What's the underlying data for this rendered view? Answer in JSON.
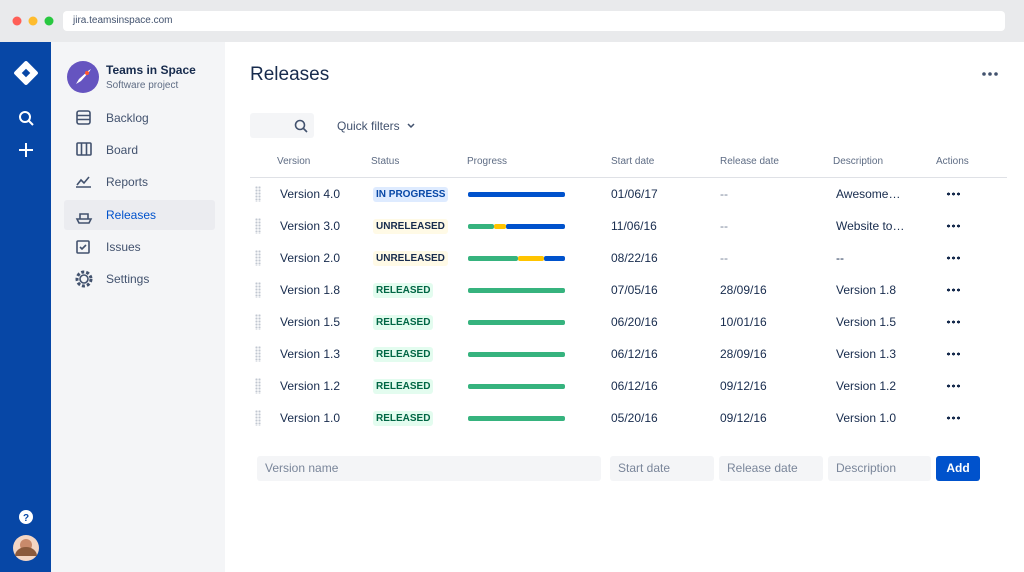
{
  "browser": {
    "url": "jira.teamsinspace.com"
  },
  "project": {
    "name": "Teams in Space",
    "type": "Software project"
  },
  "nav": [
    "Backlog",
    "Board",
    "Reports",
    "Releases",
    "Issues",
    "Settings"
  ],
  "page": {
    "title": "Releases",
    "quick_filters": "Quick filters"
  },
  "table": {
    "columns": [
      "Version",
      "Status",
      "Progress",
      "Start date",
      "Release date",
      "Description",
      "Actions"
    ],
    "progress_colors": [
      "#36b37e",
      "#ffc400",
      "#0052cc"
    ],
    "rows": [
      {
        "version": "Version 4.0",
        "status": {
          "label": "IN PROGRESS",
          "bg": "#deebff",
          "color": "#0747a6"
        },
        "progress": [
          0,
          0,
          100
        ],
        "start": "01/06/17",
        "release": "--",
        "description": "Awesome…"
      },
      {
        "version": "Version 3.0",
        "status": {
          "label": "UNRELEASED",
          "bg": "#fffae6",
          "color": "#172b4d"
        },
        "progress": [
          27,
          12,
          61
        ],
        "start": "11/06/16",
        "release": "--",
        "description": "Website to…"
      },
      {
        "version": "Version 2.0",
        "status": {
          "label": "UNRELEASED",
          "bg": "#fffae6",
          "color": "#172b4d"
        },
        "progress": [
          52,
          26,
          22
        ],
        "start": "08/22/16",
        "release": "--",
        "description": "--"
      },
      {
        "version": "Version 1.8",
        "status": {
          "label": "RELEASED",
          "bg": "#e3fcef",
          "color": "#006644"
        },
        "progress": [
          100,
          0,
          0
        ],
        "start": "07/05/16",
        "release": "28/09/16",
        "description": "Version 1.8"
      },
      {
        "version": "Version 1.5",
        "status": {
          "label": "RELEASED",
          "bg": "#e3fcef",
          "color": "#006644"
        },
        "progress": [
          100,
          0,
          0
        ],
        "start": "06/20/16",
        "release": "10/01/16",
        "description": "Version 1.5"
      },
      {
        "version": "Version 1.3",
        "status": {
          "label": "RELEASED",
          "bg": "#e3fcef",
          "color": "#006644"
        },
        "progress": [
          100,
          0,
          0
        ],
        "start": "06/12/16",
        "release": "28/09/16",
        "description": "Version 1.3"
      },
      {
        "version": "Version 1.2",
        "status": {
          "label": "RELEASED",
          "bg": "#e3fcef",
          "color": "#006644"
        },
        "progress": [
          100,
          0,
          0
        ],
        "start": "06/12/16",
        "release": "09/12/16",
        "description": "Version 1.2"
      },
      {
        "version": "Version 1.0",
        "status": {
          "label": "RELEASED",
          "bg": "#e3fcef",
          "color": "#006644"
        },
        "progress": [
          100,
          0,
          0
        ],
        "start": "05/20/16",
        "release": "09/12/16",
        "description": "Version 1.0"
      }
    ]
  },
  "form": {
    "placeholders": [
      "Version name",
      "Start date",
      "Release date",
      "Description"
    ],
    "button": "Add"
  }
}
